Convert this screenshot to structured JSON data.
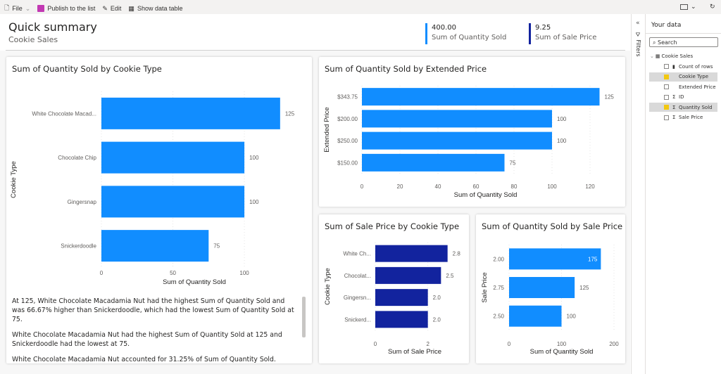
{
  "toolbar": {
    "file": "File",
    "publish": "Publish to the list",
    "edit": "Edit",
    "show_table": "Show data table"
  },
  "header": {
    "title": "Quick summary",
    "subtitle": "Cookie Sales"
  },
  "kpis": [
    {
      "value": "400.00",
      "label": "Sum of Quantity Sold",
      "color": "#118dff"
    },
    {
      "value": "9.25",
      "label": "Sum of Sale Price",
      "color": "#12239e"
    }
  ],
  "narrative": [
    "At 125, White Chocolate Macadamia Nut had the highest Sum of Quantity Sold and was 66.67% higher than Snickerdoodle, which had the lowest Sum of Quantity Sold at 75.",
    "White Chocolate Macadamia Nut had the highest Sum of Quantity Sold at 125 and Snickerdoodle had the lowest at 75.",
    "White Chocolate Macadamia Nut accounted for 31.25% of Sum of Quantity Sold."
  ],
  "filters_label": "Filters",
  "data_pane": {
    "title": "Your data",
    "search_placeholder": "Search",
    "table": "Cookie Sales",
    "fields": [
      {
        "label": "Count of rows",
        "icon": "calculator-icon",
        "checked": false
      },
      {
        "label": "Cookie Type",
        "icon": "",
        "checked": true
      },
      {
        "label": "Extended Price",
        "icon": "",
        "checked": false
      },
      {
        "label": "ID",
        "icon": "sigma-icon",
        "checked": false
      },
      {
        "label": "Quantity Sold",
        "icon": "sigma-icon",
        "checked": true
      },
      {
        "label": "Sale Price",
        "icon": "sigma-icon",
        "checked": false
      }
    ]
  },
  "chart_data": [
    {
      "type": "bar",
      "orientation": "horizontal",
      "title": "Sum of Quantity Sold by Cookie Type",
      "categories": [
        "White Chocolate Macad...",
        "Chocolate Chip",
        "Gingersnap",
        "Snickerdoodle"
      ],
      "values": [
        125,
        100,
        100,
        75
      ],
      "value_labels": [
        "125",
        "100",
        "100",
        "75"
      ],
      "xlabel": "Sum of Quantity Sold",
      "ylabel": "Cookie Type",
      "xticks": [
        "0",
        "50",
        "100"
      ],
      "xlim": [
        0,
        130
      ],
      "color": "#118dff",
      "grid": true
    },
    {
      "type": "bar",
      "orientation": "horizontal",
      "title": "Sum of Quantity Sold by Extended Price",
      "categories": [
        "$343.75",
        "$200.00",
        "$250.00",
        "$150.00"
      ],
      "values": [
        125,
        100,
        100,
        75
      ],
      "value_labels": [
        "125",
        "100",
        "100",
        "75"
      ],
      "xlabel": "Sum of Quantity Sold",
      "ylabel": "Extended Price",
      "xticks": [
        "0",
        "20",
        "40",
        "60",
        "80",
        "100",
        "120"
      ],
      "xlim": [
        0,
        130
      ],
      "color": "#118dff",
      "grid": true
    },
    {
      "type": "bar",
      "orientation": "horizontal",
      "title": "Sum of Sale Price by Cookie Type",
      "categories": [
        "White Ch...",
        "Chocolat...",
        "Gingersn...",
        "Snickerd..."
      ],
      "values": [
        2.75,
        2.5,
        2.0,
        2.0
      ],
      "value_labels": [
        "2.8",
        "2.5",
        "2.0",
        "2.0"
      ],
      "xlabel": "Sum of Sale Price",
      "ylabel": "Cookie Type",
      "xticks": [
        "0",
        "2"
      ],
      "xlim": [
        0,
        3
      ],
      "color": "#12239e",
      "grid": true
    },
    {
      "type": "bar",
      "orientation": "horizontal",
      "title": "Sum of Quantity Sold by Sale Price",
      "categories": [
        "2.00",
        "2.75",
        "2.50"
      ],
      "values": [
        175,
        125,
        100
      ],
      "value_labels": [
        "175",
        "125",
        "100"
      ],
      "xlabel": "Sum of Quantity Sold",
      "ylabel": "Sale Price",
      "xticks": [
        "0",
        "100",
        "200"
      ],
      "xlim": [
        0,
        200
      ],
      "color": "#118dff",
      "grid": true
    }
  ]
}
